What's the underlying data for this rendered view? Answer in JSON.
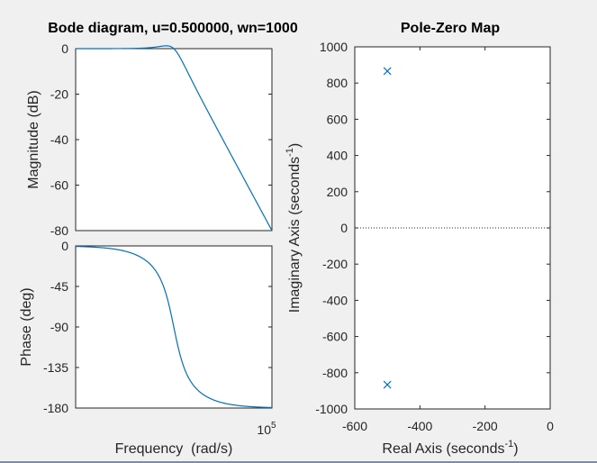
{
  "colors": {
    "background": "#f0f0f0",
    "plot_bg": "#ffffff",
    "axis": "#262626",
    "series": "#0072bd"
  },
  "chart_data": [
    {
      "type": "line",
      "title": "Bode diagram, u=0.500000, wn=1000",
      "xlabel": "",
      "ylabel": "Magnitude (dB)",
      "xscale": "log",
      "xlim": [
        10,
        100000
      ],
      "ylim": [
        -80,
        0
      ],
      "yticks": [
        0,
        -20,
        -40,
        -60,
        -80
      ],
      "ytick_labels": [
        "0",
        "-20",
        "-40",
        "-60",
        "-80"
      ],
      "grid": false,
      "series": [
        {
          "params": {
            "u": 0.5,
            "wn": 1000
          },
          "x": [
            10,
            100,
            300,
            500,
            800,
            1000,
            1500,
            2000,
            5000,
            10000,
            50000,
            100000
          ],
          "values": [
            0,
            0,
            0.3,
            0.9,
            1.1,
            0,
            -5.2,
            -11.1,
            -27.9,
            -40,
            -68,
            -80
          ]
        }
      ]
    },
    {
      "type": "line",
      "title": "",
      "xlabel": "Frequency  (rad/s)",
      "ylabel": "Phase (deg)",
      "xscale": "log",
      "xlim": [
        10,
        100000
      ],
      "ylim": [
        -180,
        0
      ],
      "yticks": [
        0,
        -45,
        -90,
        -135,
        -180
      ],
      "ytick_labels": [
        "0",
        "-45",
        "-90",
        "-135",
        "-180"
      ],
      "xtick_labels": [
        {
          "base": "10",
          "exp": "5"
        }
      ],
      "grid": false,
      "series": [
        {
          "params": {
            "u": 0.5,
            "wn": 1000
          },
          "x": [
            10,
            100,
            300,
            500,
            800,
            1000,
            1500,
            2000,
            5000,
            10000,
            50000,
            100000
          ],
          "values": [
            -0.6,
            -5.8,
            -19.3,
            -33.7,
            -65.8,
            -90,
            -129.8,
            -146.3,
            -168.1,
            -174.2,
            -178.9,
            -179.4
          ]
        }
      ]
    },
    {
      "type": "scatter",
      "title": "Pole-Zero Map",
      "xlabel": "Real Axis (seconds",
      "xlabel_sup": "-1",
      "xlabel_tail": ")",
      "ylabel": "Imaginary Axis (seconds",
      "ylabel_sup": "-1",
      "ylabel_tail": ")",
      "xlim": [
        -600,
        0
      ],
      "ylim": [
        -1000,
        1000
      ],
      "xticks": [
        -600,
        -400,
        -200,
        0
      ],
      "xtick_labels": [
        "-600",
        "-400",
        "-200",
        "0"
      ],
      "yticks": [
        1000,
        800,
        600,
        400,
        200,
        0,
        -200,
        -400,
        -600,
        -800,
        -1000
      ],
      "ytick_labels": [
        "1000",
        "800",
        "600",
        "400",
        "200",
        "0",
        "-200",
        "-400",
        "-600",
        "-800",
        "-1000"
      ],
      "grid": false,
      "zero_line": "dotted",
      "points": [
        {
          "x": -500,
          "y": 866,
          "marker": "x"
        },
        {
          "x": -500,
          "y": -866,
          "marker": "x"
        }
      ]
    }
  ]
}
